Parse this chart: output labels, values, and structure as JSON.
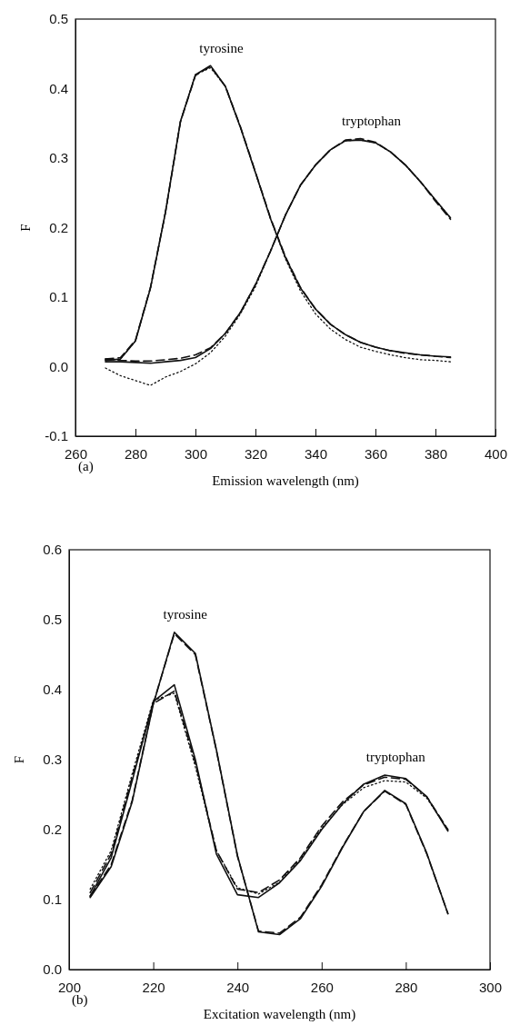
{
  "chart_data": [
    {
      "type": "line",
      "xlabel": "Emission wavelength (nm)",
      "ylabel": "F",
      "xlim": [
        260,
        400
      ],
      "xticks": [
        260,
        280,
        300,
        320,
        340,
        360,
        380,
        400
      ],
      "ylim": [
        -0.1,
        0.5
      ],
      "yticks": [
        -0.1,
        {
          "value": 0,
          "label": "0.0"
        },
        0.1,
        0.2,
        0.3,
        0.4,
        0.5
      ],
      "grid": false,
      "marker": "none",
      "x": [
        270,
        275,
        280,
        285,
        290,
        295,
        300,
        305,
        310,
        315,
        320,
        325,
        330,
        335,
        340,
        345,
        350,
        355,
        360,
        365,
        370,
        375,
        380,
        385
      ],
      "series": [
        {
          "color": "#111111",
          "line_style": "solid",
          "values": [
            0.009,
            0.011,
            0.037,
            0.113,
            0.222,
            0.353,
            0.42,
            0.433,
            0.403,
            0.344,
            0.279,
            0.213,
            0.157,
            0.113,
            0.083,
            0.061,
            0.046,
            0.035,
            0.028,
            0.023,
            0.02,
            0.017,
            0.015,
            0.014
          ]
        },
        {
          "color": "#111111",
          "line_style": "dashed",
          "values": [
            0.011,
            0.013,
            0.038,
            0.114,
            0.222,
            0.352,
            0.419,
            0.432,
            0.403,
            0.345,
            0.28,
            0.214,
            0.158,
            0.114,
            0.083,
            0.061,
            0.046,
            0.035,
            0.028,
            0.023,
            0.019,
            0.017,
            0.015,
            0.013
          ]
        },
        {
          "color": "#111111",
          "line_style": "dotted",
          "values": [
            0.009,
            0.011,
            0.037,
            0.113,
            0.222,
            0.353,
            0.42,
            0.43,
            0.403,
            0.344,
            0.279,
            0.213,
            0.155,
            0.109,
            0.076,
            0.054,
            0.039,
            0.028,
            0.022,
            0.017,
            0.013,
            0.01,
            0.009,
            0.007
          ]
        },
        {
          "color": "#111111",
          "line_style": "solid",
          "values": [
            0.007,
            0.007,
            0.006,
            0.005,
            0.007,
            0.009,
            0.013,
            0.026,
            0.048,
            0.078,
            0.118,
            0.166,
            0.218,
            0.261,
            0.29,
            0.312,
            0.325,
            0.326,
            0.322,
            0.309,
            0.29,
            0.266,
            0.24,
            0.214
          ]
        },
        {
          "color": "#111111",
          "line_style": "dashed",
          "values": [
            0.011,
            0.009,
            0.008,
            0.008,
            0.01,
            0.012,
            0.017,
            0.027,
            0.048,
            0.078,
            0.118,
            0.166,
            0.218,
            0.261,
            0.29,
            0.312,
            0.326,
            0.328,
            0.323,
            0.309,
            0.29,
            0.266,
            0.238,
            0.212
          ]
        },
        {
          "color": "#111111",
          "line_style": "dotted",
          "values": [
            -0.002,
            -0.013,
            -0.02,
            -0.027,
            -0.015,
            -0.007,
            0.004,
            0.02,
            0.044,
            0.076,
            0.115,
            0.166,
            0.218,
            0.261,
            0.29,
            0.312,
            0.325,
            0.326,
            0.322,
            0.309,
            0.29,
            0.266,
            0.24,
            0.214
          ]
        }
      ],
      "annotations": [
        {
          "text": "tyrosine",
          "x": 305,
          "y": 0.433
        },
        {
          "text": "tryptophan",
          "x": 355,
          "y": 0.328
        },
        "(a)"
      ]
    },
    {
      "type": "line",
      "xlabel": "Excitation wavelength (nm)",
      "ylabel": "F",
      "xlim": [
        200,
        300
      ],
      "xticks": [
        200,
        220,
        240,
        260,
        280,
        300
      ],
      "ylim": [
        0,
        0.6
      ],
      "yticks": [
        {
          "value": 0,
          "label": "0.0"
        },
        0.1,
        0.2,
        0.3,
        0.4,
        0.5,
        0.6
      ],
      "grid": false,
      "marker": "none",
      "x": [
        205,
        210,
        215,
        220,
        225,
        230,
        235,
        240,
        245,
        250,
        255,
        260,
        265,
        270,
        275,
        280,
        285,
        290
      ],
      "series": [
        {
          "color": "#111111",
          "line_style": "solid",
          "values": [
            0.103,
            0.147,
            0.24,
            0.379,
            0.482,
            0.452,
            0.314,
            0.163,
            0.054,
            0.05,
            0.073,
            0.119,
            0.175,
            0.226,
            0.256,
            0.237,
            0.166,
            0.08
          ]
        },
        {
          "color": "#111111",
          "line_style": "dashed",
          "values": [
            0.105,
            0.15,
            0.242,
            0.38,
            0.48,
            0.45,
            0.313,
            0.162,
            0.055,
            0.052,
            0.075,
            0.121,
            0.176,
            0.226,
            0.255,
            0.236,
            0.165,
            0.08
          ]
        },
        {
          "color": "#111111",
          "line_style": "solid",
          "values": [
            0.105,
            0.16,
            0.27,
            0.383,
            0.407,
            0.3,
            0.165,
            0.107,
            0.103,
            0.124,
            0.156,
            0.2,
            0.237,
            0.265,
            0.278,
            0.273,
            0.247,
            0.198
          ]
        },
        {
          "color": "#111111",
          "line_style": "dashed",
          "values": [
            0.11,
            0.165,
            0.275,
            0.38,
            0.398,
            0.295,
            0.17,
            0.115,
            0.11,
            0.128,
            0.16,
            0.205,
            0.24,
            0.264,
            0.275,
            0.272,
            0.247,
            0.2
          ]
        },
        {
          "color": "#111111",
          "line_style": "dotted",
          "values": [
            0.115,
            0.17,
            0.28,
            0.385,
            0.395,
            0.29,
            0.17,
            0.117,
            0.108,
            0.125,
            0.158,
            0.202,
            0.236,
            0.26,
            0.27,
            0.268,
            0.245,
            0.2
          ]
        }
      ],
      "annotations": [
        {
          "text": "tyrosine",
          "x": 225,
          "y": 0.482
        },
        {
          "text": "tryptophan",
          "x": 275,
          "y": 0.278
        },
        "(b)"
      ]
    }
  ]
}
